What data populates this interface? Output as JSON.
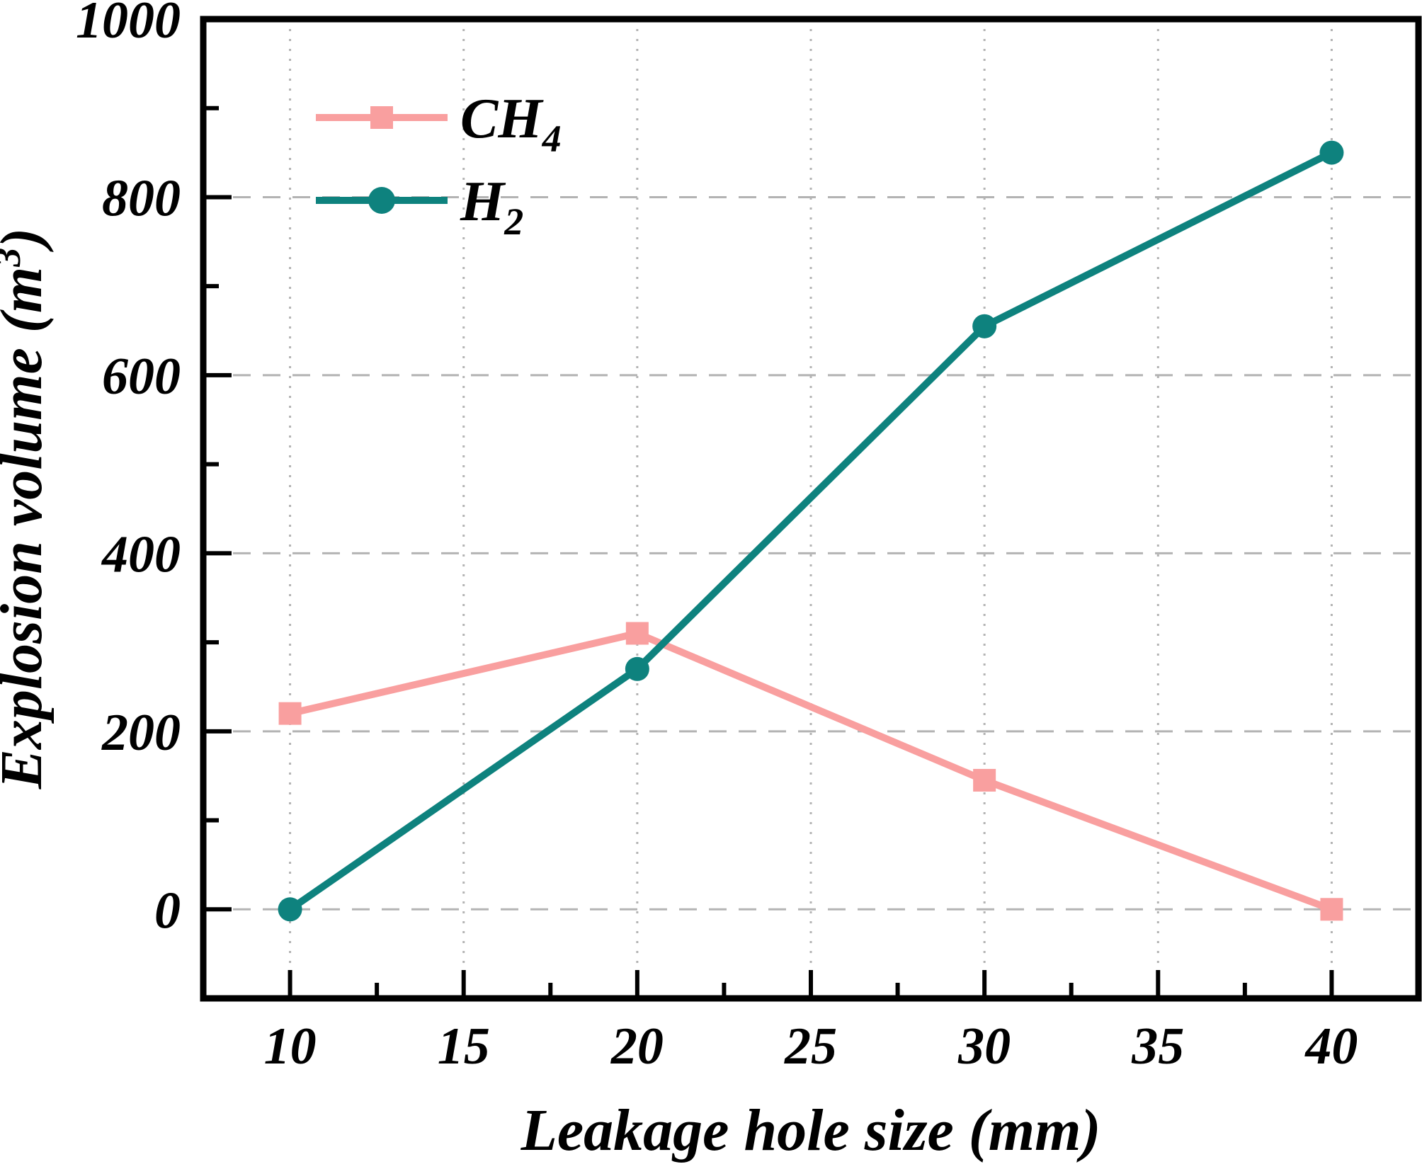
{
  "chart_data": {
    "type": "line",
    "title": "",
    "xlabel": "Leakage hole size (mm)",
    "ylabel": {
      "main": "Explosion volume (m",
      "sup": "3",
      "suffix": ")"
    },
    "x": [
      10,
      20,
      30,
      40
    ],
    "series": [
      {
        "name": "CH4",
        "legend": {
          "main": "CH",
          "sub": "4"
        },
        "color": "#f99f9f",
        "marker": "square",
        "values": [
          220,
          310,
          145,
          0
        ]
      },
      {
        "name": "H2",
        "legend": {
          "main": "H",
          "sub": "2"
        },
        "color": "#0e827e",
        "marker": "circle",
        "values": [
          0,
          270,
          655,
          850
        ]
      }
    ],
    "xlim": [
      7.5,
      42.5
    ],
    "ylim": [
      -100,
      1000
    ],
    "xticks": {
      "major": [
        10,
        15,
        20,
        25,
        30,
        35,
        40
      ],
      "labels": [
        "10",
        "15",
        "20",
        "25",
        "30",
        "35",
        "40"
      ],
      "minor": [
        12.5,
        17.5,
        22.5,
        27.5,
        32.5,
        37.5
      ]
    },
    "yticks": {
      "major": [
        0,
        200,
        400,
        600,
        800,
        1000
      ],
      "labels": [
        "0",
        "200",
        "400",
        "600",
        "800",
        "1000"
      ],
      "minor": [
        100,
        300,
        500,
        700,
        900
      ]
    },
    "grid": {
      "horizontal_style": "dashed",
      "vertical_style": "dotted",
      "color": "#b3b3b3"
    },
    "axis_color": "#000000",
    "background": "#ffffff",
    "legend_position": "top-left-inside"
  }
}
